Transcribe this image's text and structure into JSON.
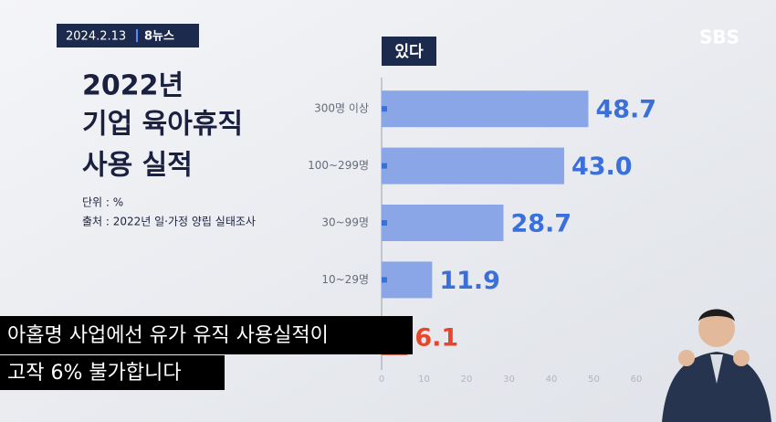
{
  "broadcast": {
    "date": "2024.2.13",
    "program": "8뉴스",
    "logo": "SBS"
  },
  "chart_data": {
    "type": "bar",
    "orientation": "horizontal",
    "title": [
      "2022년",
      "기업 육아휴직",
      "사용 실적"
    ],
    "unit_note": "단위 : %",
    "source_note": "출처 : 2022년 일·가정 양립 실태조사",
    "categories": [
      "300명 이상",
      "100~299명",
      "30~99명",
      "10~29명",
      null
    ],
    "series": [
      {
        "name": "있다",
        "color": "#8aa6e6",
        "values": [
          48.7,
          43.0,
          28.7,
          11.9,
          6.1
        ],
        "value_labels": [
          "48.7",
          "43.0",
          "28.7",
          "11.9",
          "6.1"
        ],
        "colors": [
          "#8aa6e6",
          "#8aa6e6",
          "#8aa6e6",
          "#8aa6e6",
          "#e8573a"
        ],
        "label_colors": [
          "#3b6fd9",
          "#3b6fd9",
          "#3b6fd9",
          "#3b6fd9",
          "#e8462a"
        ]
      }
    ],
    "xlim": [
      0,
      60
    ],
    "xticks": [
      0,
      10,
      20,
      30,
      40,
      50,
      60
    ],
    "grid": false
  },
  "captions": [
    "아홉명 사업에선 유가 유직 사용실적이",
    "고작 6% 불가합니다"
  ]
}
